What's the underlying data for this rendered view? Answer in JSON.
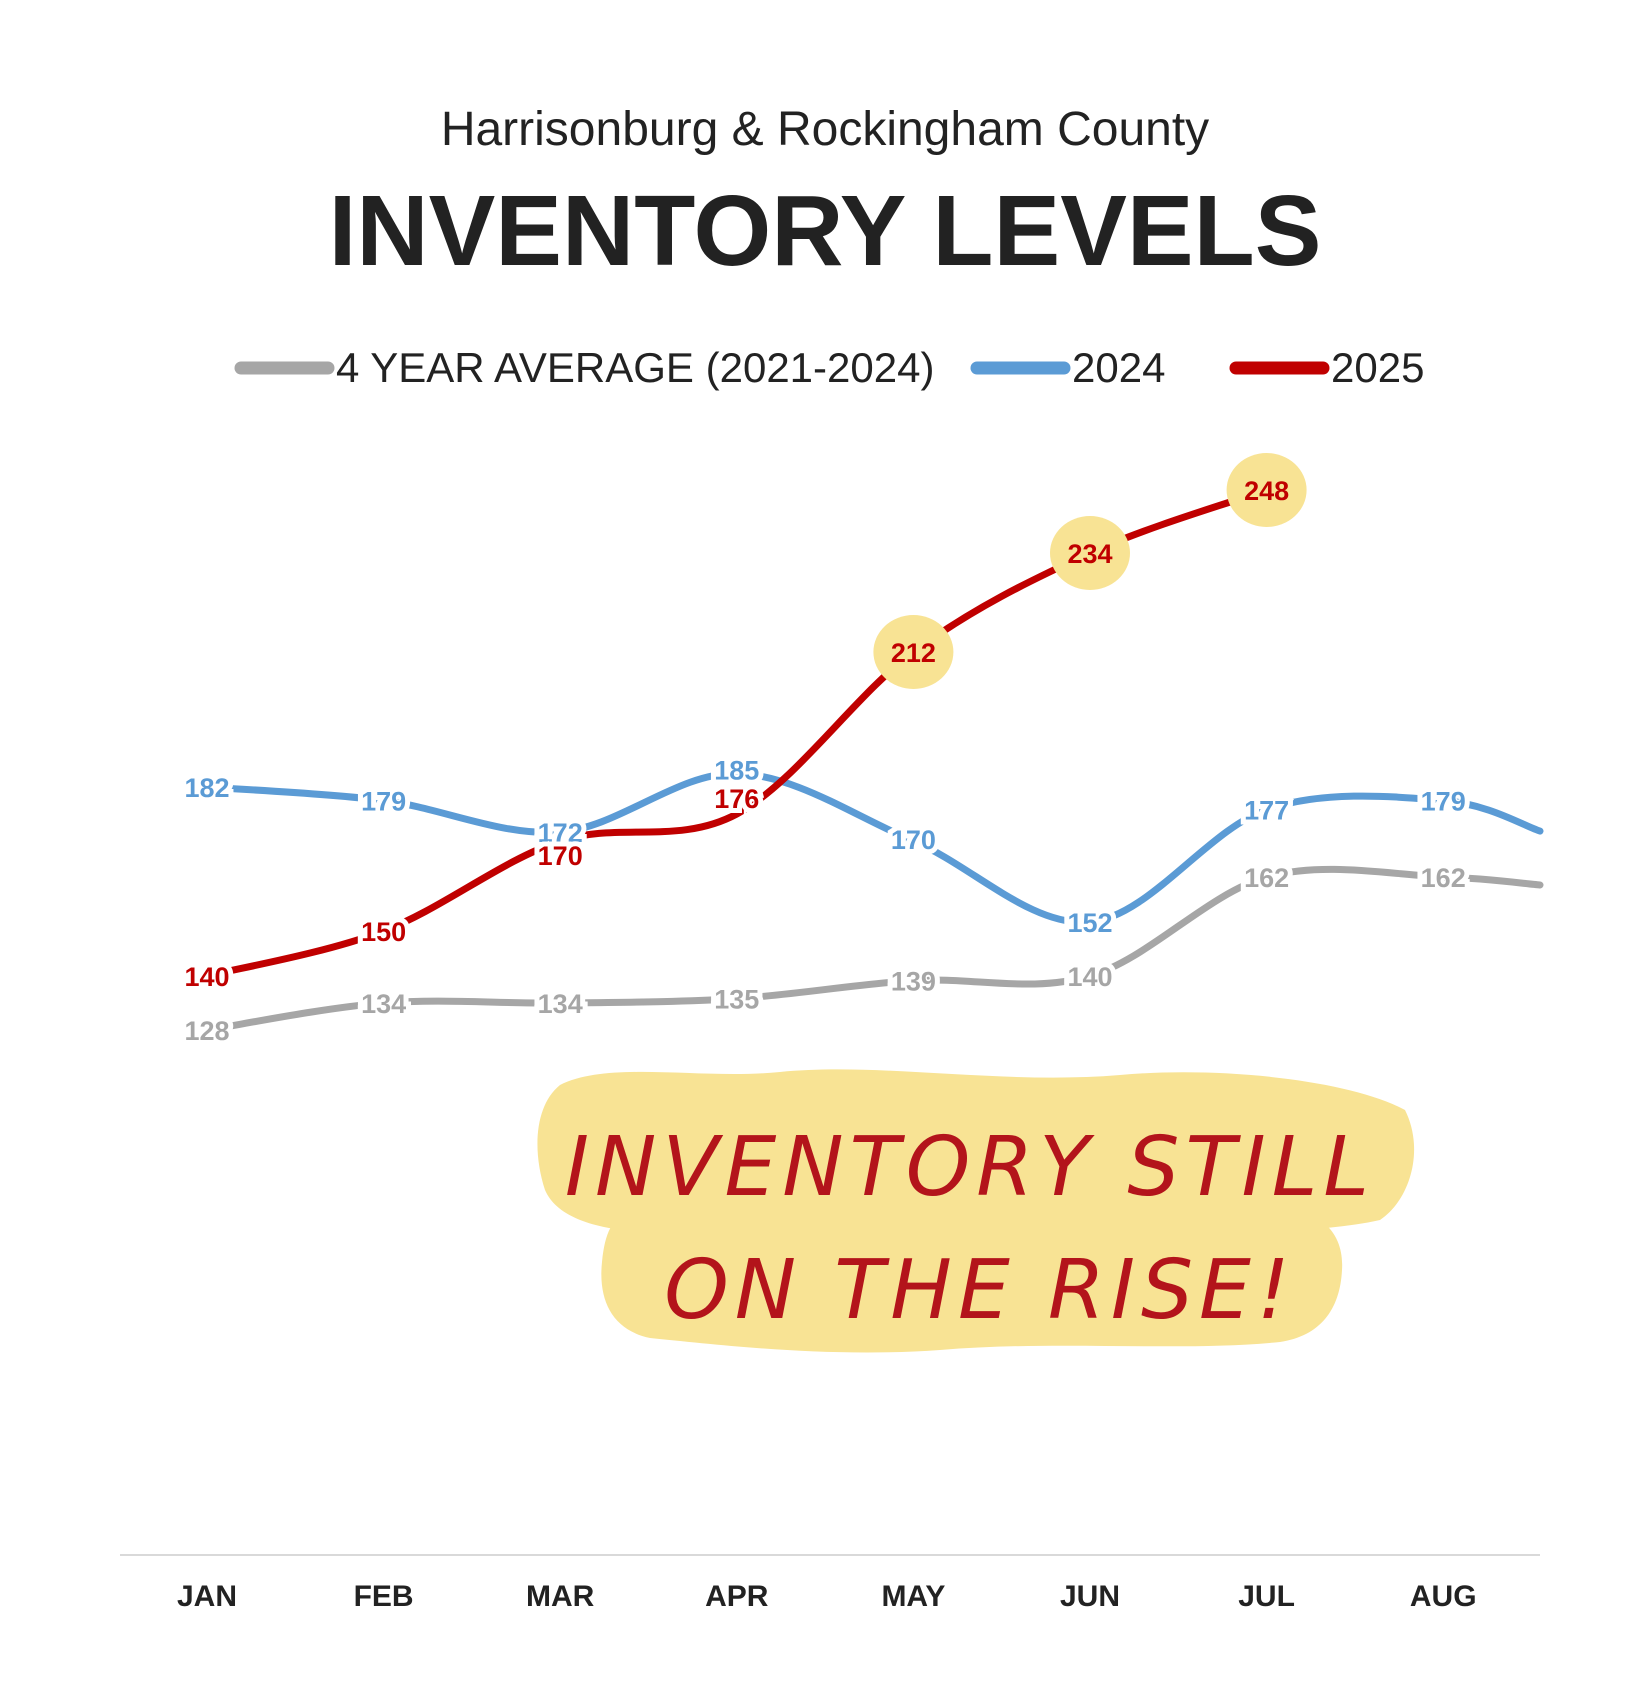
{
  "chart_data": {
    "type": "line",
    "title": "INVENTORY LEVELS",
    "subtitle": "Harrisonburg & Rockingham County",
    "categories": [
      "JAN",
      "FEB",
      "MAR",
      "APR",
      "MAY",
      "JUN",
      "JUL",
      "AUG"
    ],
    "series": [
      {
        "name": "4 YEAR AVERAGE (2021-2024)",
        "color": "#a6a6a6",
        "values": [
          128,
          134,
          134,
          135,
          139,
          140,
          162,
          162
        ],
        "extends_beyond_last": true
      },
      {
        "name": "2024",
        "color": "#5b9bd5",
        "values": [
          182,
          179,
          172,
          185,
          170,
          152,
          177,
          179
        ],
        "extends_beyond_last": true
      },
      {
        "name": "2025",
        "color": "#c00000",
        "values": [
          140,
          150,
          170,
          176,
          212,
          234,
          248,
          null
        ],
        "highlighted_points": [
          212,
          234,
          248
        ],
        "highlight_color": "#f8e394"
      }
    ],
    "legend_position": "top",
    "grid": false,
    "y_axis_visible": false,
    "annotation": {
      "line1": "INVENTORY STILL",
      "line2": "ON THE RISE!",
      "text_color": "#b3141b",
      "highlight_color": "#f8e394"
    }
  }
}
